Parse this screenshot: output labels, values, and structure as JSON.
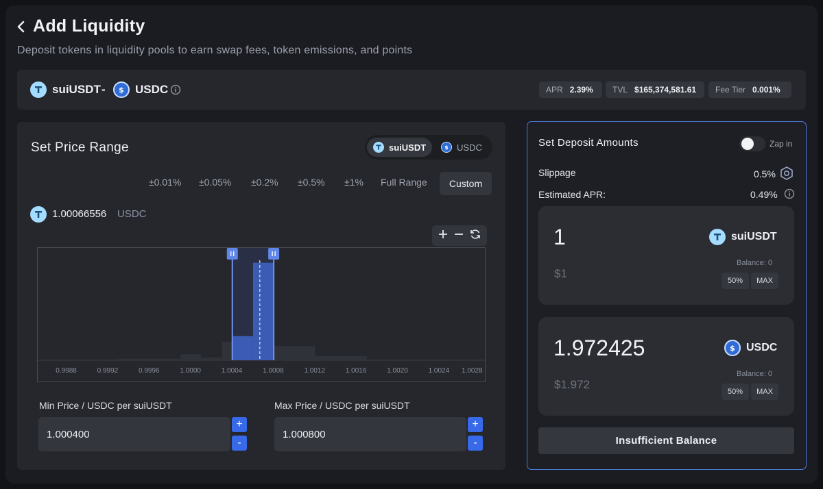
{
  "header": {
    "title": "Add Liquidity",
    "subtitle": "Deposit tokens in liquidity pools to earn swap fees, token emissions, and points"
  },
  "pair": {
    "token_a": "suiUSDT",
    "separator": "-",
    "token_b": "USDC",
    "stats": [
      {
        "key": "APR",
        "value": "2.39%"
      },
      {
        "key": "TVL",
        "value": "$165,374,581.61"
      },
      {
        "key": "Fee Tier",
        "value": "0.001%"
      }
    ]
  },
  "price_range": {
    "title": "Set Price Range",
    "toggle": {
      "active": "suiUSDT",
      "inactive": "USDC"
    },
    "presets": [
      "±0.01%",
      "±0.05%",
      "±0.2%",
      "±0.5%",
      "±1%",
      "Full Range",
      "Custom"
    ],
    "current_price": "1.00066556",
    "current_unit": "USDC",
    "min_label": "Min Price / USDC per suiUSDT",
    "min_value": "1.000400",
    "max_label": "Max Price / USDC per suiUSDT",
    "max_value": "1.000800",
    "step_plus": "+",
    "step_minus": "-"
  },
  "chart_data": {
    "type": "bar",
    "x_ticks": [
      "0.9988",
      "0.9992",
      "0.9996",
      "1.0000",
      "1.0004",
      "1.0008",
      "1.0012",
      "1.0016",
      "1.0020",
      "1.0024",
      "1.0028"
    ],
    "xlim": [
      0.99852,
      1.00284
    ],
    "bins": [
      {
        "from": 0.99852,
        "to": 0.9993,
        "value": 0.6
      },
      {
        "from": 0.9993,
        "to": 0.9999,
        "value": 1.5
      },
      {
        "from": 0.9999,
        "to": 1.0001,
        "value": 5.5
      },
      {
        "from": 1.0001,
        "to": 1.0003,
        "value": 2.5
      },
      {
        "from": 1.0003,
        "to": 1.0004,
        "value": 17
      },
      {
        "from": 1.0004,
        "to": 1.0006,
        "value": 22
      },
      {
        "from": 1.0006,
        "to": 1.0008,
        "value": 89
      },
      {
        "from": 1.0008,
        "to": 1.0012,
        "value": 13
      },
      {
        "from": 1.0012,
        "to": 1.0017,
        "value": 4
      },
      {
        "from": 1.0017,
        "to": 1.00284,
        "value": 0.8
      }
    ],
    "ylim": [
      0,
      100
    ],
    "selected_range": [
      1.0004,
      1.0008
    ],
    "current_price": 1.00066556
  },
  "deposit": {
    "title": "Set Deposit Amounts",
    "zap_label": "Zap in",
    "slippage_label": "Slippage",
    "slippage_value": "0.5%",
    "apr_label": "Estimated APR:",
    "apr_value": "0.49%",
    "token_a": {
      "amount": "1",
      "usd": "$1",
      "symbol": "suiUSDT",
      "balance": "Balance: 0",
      "btn_half": "50%",
      "btn_max": "MAX"
    },
    "token_b": {
      "amount": "1.972425",
      "usd": "$1.972",
      "symbol": "USDC",
      "balance": "Balance: 0",
      "btn_half": "50%",
      "btn_max": "MAX"
    },
    "submit": "Insufficient Balance"
  },
  "colors": {
    "accent": "#3769e8",
    "border_active": "#4c7bd9",
    "usdt": "#a3dcff",
    "usdc": "#2f6cd6"
  },
  "icons": [
    "back-chevron-icon",
    "usdt-token-icon",
    "usdc-token-icon",
    "info-icon",
    "zoom-in-icon",
    "zoom-out-icon",
    "reset-icon",
    "settings-hex-icon",
    "drag-handle-icon"
  ]
}
